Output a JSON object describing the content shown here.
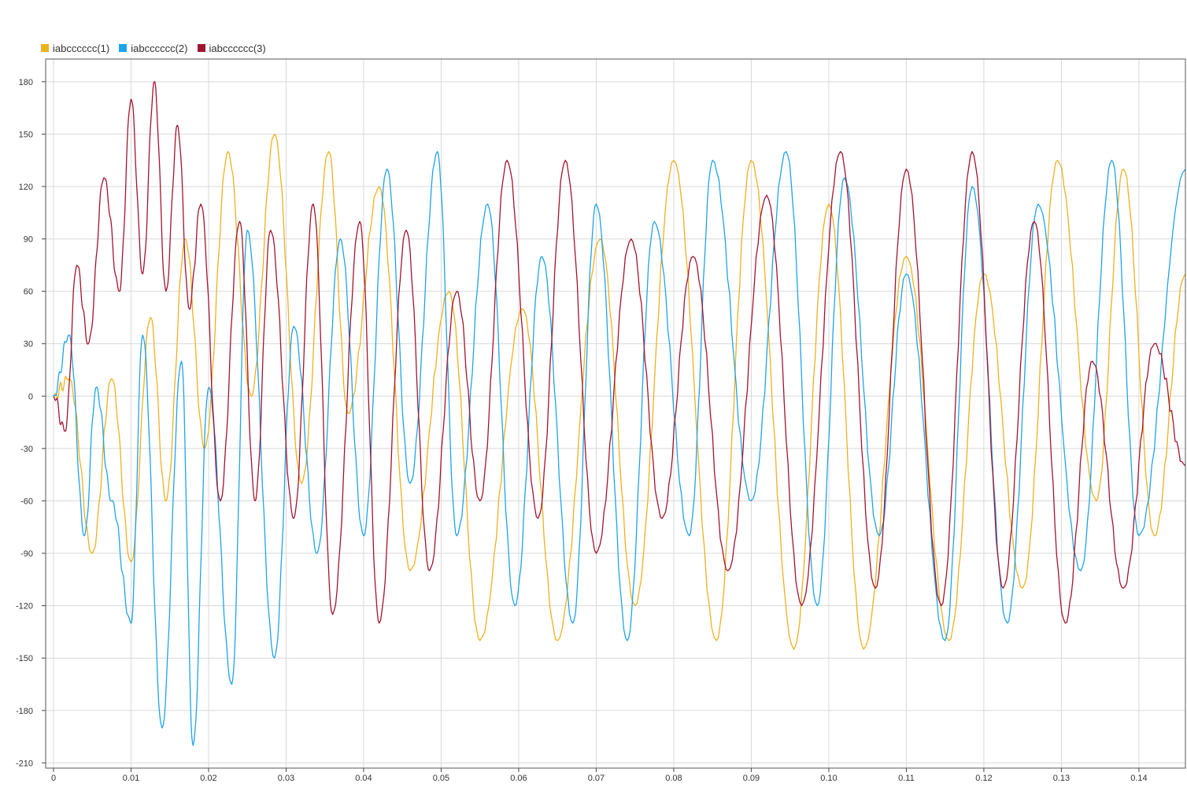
{
  "legend": [
    {
      "label": "iabcccccc(1)",
      "color": "#EDB120"
    },
    {
      "label": "iabcccccc(2)",
      "color": "#1FA3EE"
    },
    {
      "label": "iabcccccc(3)",
      "color": "#A2142F"
    }
  ],
  "chart_data": {
    "type": "line",
    "title": "",
    "xlabel": "",
    "ylabel": "",
    "xlim": [
      0,
      0.146
    ],
    "ylim": [
      -213,
      193
    ],
    "xticks": [
      0,
      0.01,
      0.02,
      0.03,
      0.04,
      0.05,
      0.06,
      0.07,
      0.08,
      0.09,
      0.1,
      0.11,
      0.12,
      0.13,
      0.14
    ],
    "xtick_labels": [
      "0",
      "0.01",
      "0.02",
      "0.03",
      "0.04",
      "0.05",
      "0.06",
      "0.07",
      "0.08",
      "0.09",
      "0.10",
      "0.11",
      "0.12",
      "0.13",
      "0.14"
    ],
    "yticks": [
      180,
      150,
      120,
      90,
      60,
      30,
      0,
      -30,
      -60,
      -90,
      -120,
      -150,
      -180,
      -210
    ],
    "ytick_labels": [
      "180",
      "150",
      "120",
      "90",
      "60",
      "30",
      "0",
      "-30",
      "-60",
      "-90",
      "-120",
      "-150",
      "-180",
      "-210"
    ],
    "grid": true,
    "legend_position": "top-left",
    "series": [
      {
        "name": "iabcccccc(1)",
        "color": "#EDB120",
        "x": [
          0,
          0.002,
          0.005,
          0.0075,
          0.01,
          0.0125,
          0.0145,
          0.017,
          0.0195,
          0.0225,
          0.0255,
          0.0285,
          0.032,
          0.0355,
          0.038,
          0.042,
          0.046,
          0.051,
          0.055,
          0.0605,
          0.065,
          0.0705,
          0.075,
          0.08,
          0.0855,
          0.09,
          0.0955,
          0.1,
          0.1045,
          0.11,
          0.1155,
          0.12,
          0.125,
          0.1295,
          0.1345,
          0.138,
          0.142,
          0.146
        ],
        "y": [
          0,
          10,
          -90,
          10,
          -95,
          45,
          -60,
          90,
          -30,
          140,
          0,
          150,
          -50,
          140,
          -10,
          120,
          -100,
          60,
          -140,
          50,
          -140,
          90,
          -120,
          135,
          -140,
          135,
          -145,
          110,
          -145,
          80,
          -140,
          70,
          -110,
          135,
          -60,
          130,
          -80,
          70
        ]
      },
      {
        "name": "iabcccccc(2)",
        "color": "#1FA3EE",
        "x": [
          0,
          0.002,
          0.004,
          0.0055,
          0.0075,
          0.01,
          0.0115,
          0.014,
          0.0165,
          0.018,
          0.02,
          0.023,
          0.025,
          0.0285,
          0.031,
          0.034,
          0.037,
          0.04,
          0.043,
          0.046,
          0.0495,
          0.052,
          0.056,
          0.0595,
          0.063,
          0.067,
          0.07,
          0.074,
          0.0775,
          0.082,
          0.085,
          0.09,
          0.0945,
          0.0985,
          0.102,
          0.1065,
          0.11,
          0.115,
          0.1185,
          0.123,
          0.127,
          0.1325,
          0.1365,
          0.14,
          0.146
        ],
        "y": [
          0,
          35,
          -80,
          5,
          -60,
          -130,
          35,
          -190,
          20,
          -200,
          5,
          -165,
          95,
          -150,
          40,
          -90,
          90,
          -80,
          130,
          -50,
          140,
          -80,
          110,
          -120,
          80,
          -130,
          110,
          -140,
          100,
          -80,
          135,
          -60,
          140,
          -120,
          125,
          -80,
          70,
          -140,
          120,
          -130,
          110,
          -100,
          135,
          -80,
          130
        ]
      },
      {
        "name": "iabcccccc(3)",
        "color": "#A2142F",
        "x": [
          0,
          0.0015,
          0.003,
          0.0045,
          0.0065,
          0.0085,
          0.01,
          0.0115,
          0.013,
          0.0145,
          0.016,
          0.0175,
          0.019,
          0.0215,
          0.024,
          0.026,
          0.028,
          0.031,
          0.0335,
          0.036,
          0.0395,
          0.042,
          0.0455,
          0.0485,
          0.052,
          0.055,
          0.0585,
          0.0625,
          0.066,
          0.07,
          0.0745,
          0.0785,
          0.0825,
          0.087,
          0.092,
          0.0965,
          0.1015,
          0.106,
          0.11,
          0.1145,
          0.1185,
          0.1225,
          0.1265,
          0.1305,
          0.134,
          0.138,
          0.142,
          0.146
        ],
        "y": [
          0,
          -20,
          75,
          30,
          125,
          60,
          170,
          70,
          180,
          60,
          155,
          50,
          110,
          -60,
          100,
          -60,
          95,
          -70,
          110,
          -125,
          100,
          -130,
          95,
          -100,
          60,
          -60,
          135,
          -70,
          135,
          -90,
          90,
          -70,
          80,
          -100,
          115,
          -120,
          140,
          -110,
          130,
          -120,
          140,
          -110,
          100,
          -130,
          20,
          -110,
          30,
          -40
        ]
      }
    ]
  }
}
